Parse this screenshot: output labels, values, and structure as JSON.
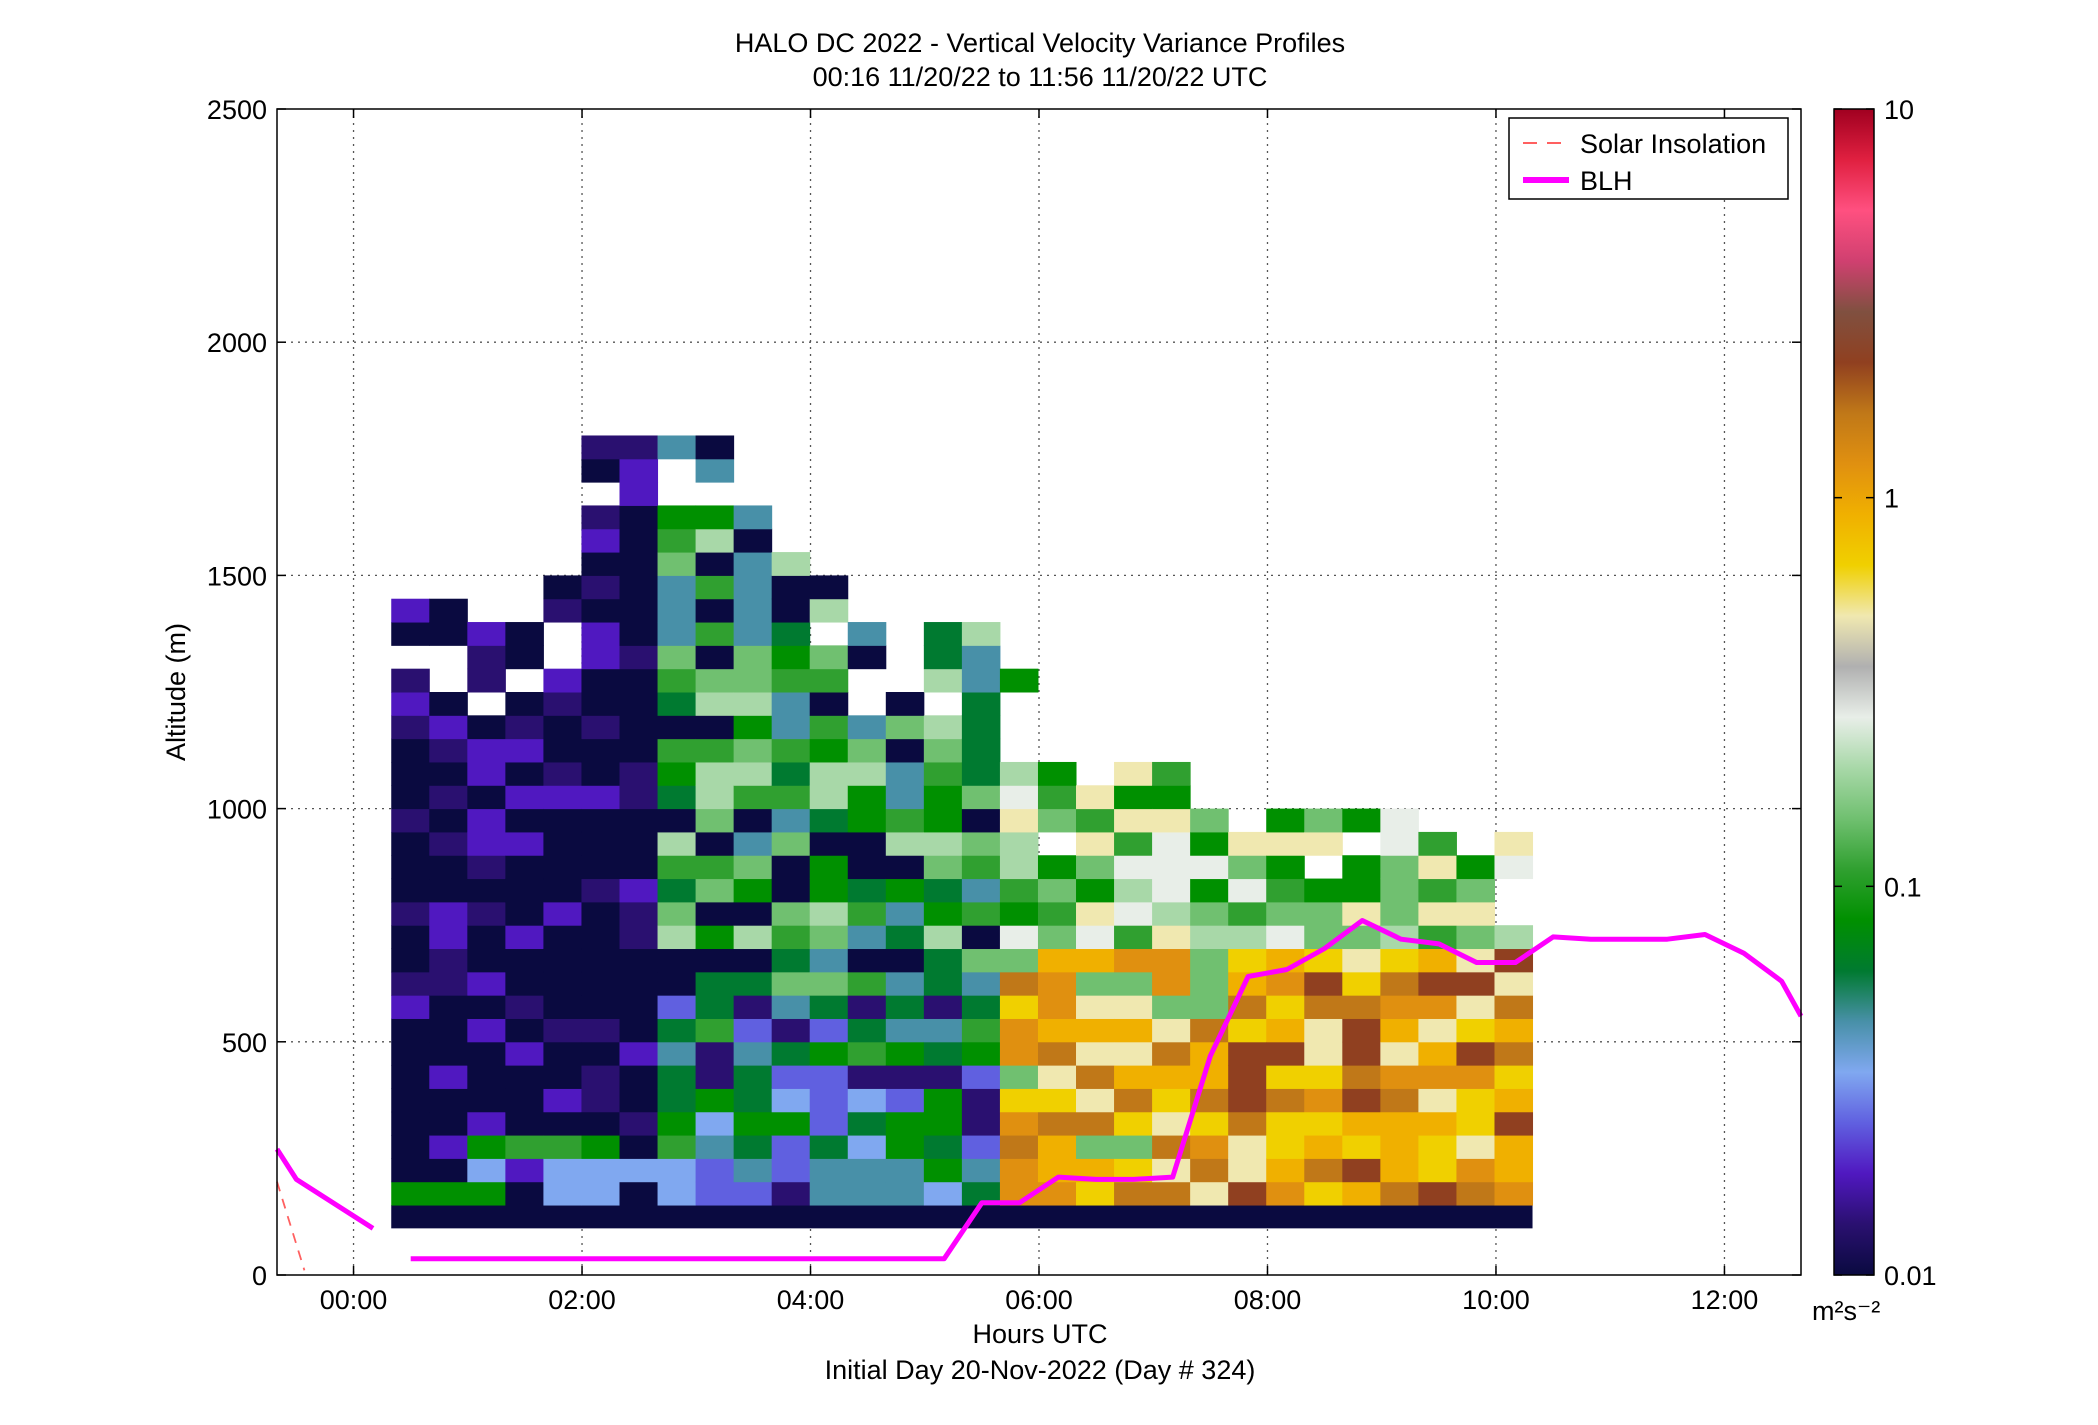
{
  "chart_data": {
    "type": "heatmap",
    "title": "HALO DC 2022 - Vertical Velocity Variance Profiles",
    "subtitle": "00:16 11/20/22 to 11:56 11/20/22  UTC",
    "xlabel": "Hours UTC",
    "xlabel2": "Initial Day 20-Nov-2022 (Day # 324)",
    "ylabel": "Altitude (m)",
    "x_ticks": [
      "00:00",
      "02:00",
      "04:00",
      "06:00",
      "08:00",
      "10:00",
      "12:00"
    ],
    "x_tick_hours": [
      0,
      2,
      4,
      6,
      8,
      10,
      12
    ],
    "y_ticks": [
      "0",
      "500",
      "1000",
      "1500",
      "2000",
      "2500"
    ],
    "y_tick_values": [
      0,
      500,
      1000,
      1500,
      2000,
      2500
    ],
    "xlim_hours": [
      -0.67,
      12.67
    ],
    "ylim": [
      0,
      2500
    ],
    "grid": true,
    "colorbar": {
      "label": "m²s⁻²",
      "scale": "log",
      "range": [
        0.01,
        10
      ],
      "ticks": [
        "10",
        "1",
        "0.1",
        "0.01"
      ],
      "tick_values": [
        10,
        1,
        0.1,
        0.01
      ],
      "colors": [
        "#0a0a40",
        "#2a1070",
        "#5018c0",
        "#6060e0",
        "#80a8f0",
        "#4890a8",
        "#007a30",
        "#009000",
        "#30a030",
        "#70c070",
        "#a8d8a8",
        "#e8eee8",
        "#b0b0b0",
        "#f0e8b0",
        "#f0d000",
        "#f0b000",
        "#e09010",
        "#c07818",
        "#904020",
        "#805040",
        "#d04070",
        "#ff5080",
        "#e02040",
        "#a00020"
      ]
    },
    "legend": {
      "position": "top-right",
      "entries": [
        {
          "label": "Solar Insolation",
          "color": "#ff6060",
          "style": "dashed"
        },
        {
          "label": "BLH",
          "color": "#ff00ff",
          "style": "solid"
        }
      ]
    },
    "series": [
      {
        "name": "BLH",
        "x_hours": [
          -0.67,
          -0.5,
          0.17,
          null,
          0.5,
          1.5,
          2.5,
          3.5,
          4.5,
          5.17,
          5.5,
          5.83,
          6.17,
          6.5,
          6.83,
          7.17,
          7.5,
          7.83,
          8.17,
          8.5,
          8.83,
          9.17,
          9.5,
          9.83,
          10.17,
          10.5,
          10.83,
          11.17,
          11.5,
          11.83,
          12.17,
          12.5,
          12.67
        ],
        "y": [
          270,
          205,
          100,
          null,
          35,
          35,
          35,
          35,
          35,
          35,
          155,
          155,
          210,
          205,
          205,
          210,
          470,
          640,
          655,
          700,
          760,
          720,
          710,
          670,
          670,
          725,
          720,
          720,
          720,
          730,
          690,
          630,
          555
        ]
      },
      {
        "name": "Solar Insolation",
        "x_hours": [
          -0.67,
          -0.43
        ],
        "y": [
          200,
          10
        ]
      }
    ],
    "heatmap": {
      "x_start_hours": 0.33,
      "x_step_hours": 0.333,
      "y_start": 100,
      "y_step": 50,
      "col_count": 30,
      "col_heights": [
        1450,
        1450,
        1400,
        1450,
        1500,
        1800,
        1800,
        1800,
        1800,
        1650,
        1550,
        1500,
        1400,
        1300,
        1400,
        1400,
        1300,
        1100,
        1100,
        1100,
        1100,
        1000,
        950,
        1000,
        1000,
        1000,
        1000,
        950,
        950,
        950
      ],
      "gradient_profile": [
        {
          "from_col": 0,
          "to_col": 6,
          "lower": "dark navy / violet with green patches",
          "upper": "dark navy"
        },
        {
          "from_col": 7,
          "to_col": 15,
          "lower": "green / blue mix",
          "upper": "green / light green"
        },
        {
          "from_col": 16,
          "to_col": 21,
          "lower": "yellow / orange",
          "upper": "green / light green"
        },
        {
          "from_col": 22,
          "to_col": 29,
          "lower": "orange / brown",
          "upper": "yellow / light"
        }
      ]
    }
  }
}
